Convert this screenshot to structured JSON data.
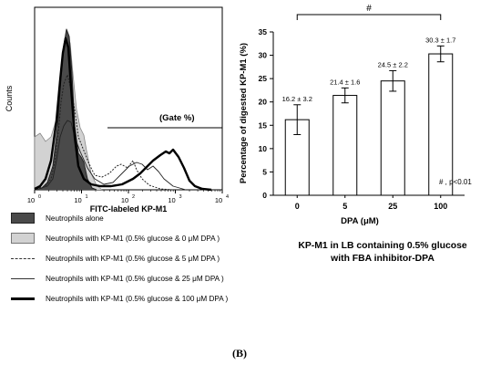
{
  "flow_histogram": {
    "ylabel": "Counts",
    "xlabel": "FITC-labeled KP-M1",
    "gate_label": "(Gate %)",
    "tick_labels": [
      "10",
      "10",
      "10",
      "10",
      "10"
    ],
    "tick_exponents": [
      "0",
      "1",
      "2",
      "3",
      "4"
    ]
  },
  "legend": [
    {
      "label": "Neutrophils alone",
      "style": "filled-dark"
    },
    {
      "label": "Neutrophils with KP-M1 (0.5% glucose & 0 μM DPA )",
      "style": "filled-light"
    },
    {
      "label": "Neutrophils with KP-M1 (0.5% glucose & 5 μM DPA )",
      "style": "dashed"
    },
    {
      "label": "Neutrophils with KP-M1 (0.5% glucose & 25 μM DPA )",
      "style": "thin"
    },
    {
      "label": "Neutrophils with KP-M1 (0.5% glucose & 100 μM DPA )",
      "style": "thick"
    }
  ],
  "chart_data": {
    "type": "bar",
    "categories": [
      "0",
      "5",
      "25",
      "100"
    ],
    "values": [
      16.2,
      21.4,
      24.5,
      30.3
    ],
    "errors": [
      3.2,
      1.6,
      2.2,
      1.7
    ],
    "value_labels": [
      "16.2 ± 3.2",
      "21.4 ± 1.6",
      "24.5 ± 2.2",
      "30.3 ± 1.7"
    ],
    "xlabel": "DPA (μM)",
    "ylabel": "Percentage of digested KP-M1 (%)",
    "ylim": [
      0,
      35
    ],
    "yticks": [
      "0",
      "5",
      "10",
      "15",
      "20",
      "25",
      "30",
      "35"
    ],
    "significance_marker": "#",
    "significance_note": "# , p<0.01",
    "bar_color": "#ffffff"
  },
  "caption": {
    "line1": "KP-M1 in LB containing 0.5% glucose",
    "line2": "with FBA inhibitor-DPA"
  },
  "panel_label": "(B)"
}
